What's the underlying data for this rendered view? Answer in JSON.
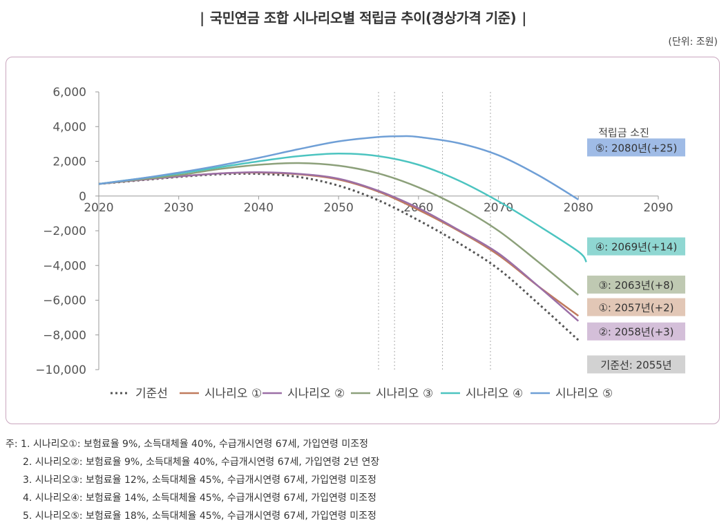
{
  "title": "국민연금 조합 시나리오별 적립금 추이(경상가격 기준)",
  "title_bar": "|",
  "unit": "(단위: 조원)",
  "chart_data": {
    "type": "line",
    "x_ticks": [
      2020,
      2030,
      2040,
      2050,
      2060,
      2070,
      2080,
      2090
    ],
    "y_ticks": [
      6000,
      4000,
      2000,
      0,
      -2000,
      -4000,
      -6000,
      -8000,
      -10000
    ],
    "y_tick_labels": [
      "6,000",
      "4,000",
      "2,000",
      "0",
      "−2,000",
      "−4,000",
      "−6,000",
      "−8,000",
      "−10,000"
    ],
    "xlim": [
      2020,
      2090
    ],
    "ylim": [
      -10000,
      6000
    ],
    "vlines": [
      2055,
      2057,
      2063,
      2069
    ],
    "series": [
      {
        "name": "기준선",
        "key": "base",
        "color": "#555555",
        "dash": true,
        "x": [
          2020,
          2025,
          2030,
          2035,
          2040,
          2045,
          2050,
          2055,
          2060,
          2065,
          2070,
          2075,
          2080
        ],
        "y": [
          700,
          900,
          1100,
          1250,
          1280,
          1100,
          600,
          -250,
          -1400,
          -2700,
          -4200,
          -6200,
          -8300
        ]
      },
      {
        "name": "시나리오 ①",
        "key": "s1",
        "color": "#c07a5d",
        "dash": false,
        "x": [
          2020,
          2025,
          2030,
          2035,
          2040,
          2045,
          2050,
          2055,
          2060,
          2065,
          2070,
          2075,
          2080
        ],
        "y": [
          700,
          920,
          1130,
          1300,
          1350,
          1250,
          950,
          250,
          -800,
          -2000,
          -3400,
          -5200,
          -6900
        ]
      },
      {
        "name": "시나리오 ②",
        "key": "s2",
        "color": "#9b6fa6",
        "dash": false,
        "x": [
          2020,
          2025,
          2030,
          2035,
          2040,
          2045,
          2050,
          2055,
          2060,
          2065,
          2070,
          2075,
          2080
        ],
        "y": [
          700,
          920,
          1130,
          1300,
          1370,
          1280,
          1000,
          300,
          -700,
          -1950,
          -3300,
          -5200,
          -7200
        ]
      },
      {
        "name": "시나리오 ③",
        "key": "s3",
        "color": "#8ca07a",
        "dash": false,
        "x": [
          2020,
          2025,
          2030,
          2035,
          2040,
          2045,
          2050,
          2055,
          2060,
          2065,
          2070,
          2075,
          2080
        ],
        "y": [
          700,
          950,
          1200,
          1550,
          1800,
          1900,
          1750,
          1300,
          500,
          -600,
          -2000,
          -3800,
          -5700
        ]
      },
      {
        "name": "시나리오 ④",
        "key": "s4",
        "color": "#4cc4c0",
        "dash": false,
        "x": [
          2020,
          2025,
          2030,
          2035,
          2040,
          2045,
          2050,
          2055,
          2060,
          2065,
          2070,
          2075,
          2080,
          2081
        ],
        "y": [
          700,
          1000,
          1300,
          1650,
          2000,
          2300,
          2450,
          2300,
          1800,
          900,
          -300,
          -1700,
          -3200,
          -3800
        ]
      },
      {
        "name": "시나리오 ⑤",
        "key": "s5",
        "color": "#6f9fd6",
        "dash": false,
        "x": [
          2020,
          2025,
          2030,
          2035,
          2040,
          2045,
          2050,
          2055,
          2058,
          2060,
          2065,
          2070,
          2075,
          2080
        ],
        "y": [
          700,
          1000,
          1350,
          1750,
          2200,
          2700,
          3150,
          3400,
          3450,
          3400,
          3050,
          2350,
          1200,
          -200
        ]
      }
    ],
    "annotations": {
      "header": "적립금 소진",
      "labels": [
        {
          "text": "⑤: 2080년(+25)",
          "bg": "#9fbbe6",
          "y": 2800
        },
        {
          "text": "④: 2069년(+14)",
          "bg": "#8fd7d2",
          "y": -2900
        },
        {
          "text": "③: 2063년(+8)",
          "bg": "#bfc9b2",
          "y": -5100
        },
        {
          "text": "①: 2057년(+2)",
          "bg": "#e2c7b6",
          "y": -6400
        },
        {
          "text": "②: 2058년(+3)",
          "bg": "#d4bfd9",
          "y": -7800
        },
        {
          "text": "기준선: 2055년",
          "bg": "#d2d2d2",
          "y": -9700
        }
      ]
    }
  },
  "notes": [
    "주: 1. 시나리오①: 보험료율 9%, 소득대체율 40%, 수급개시연령 67세, 가입연령 미조정",
    "2. 시나리오②: 보험료율 9%, 소득대체율 40%, 수급개시연령 67세, 가입연령 2년 연장",
    "3. 시나리오③: 보험료율 12%, 소득대체율 45%, 수급개시연령 67세, 가입연령 미조정",
    "4. 시나리오④: 보험료율 14%, 소득대체율 45%, 수급개시연령 67세, 가입연령 미조정",
    "5. 시나리오⑤: 보험료율 18%, 소득대체율 45%, 수급개시연령 67세, 가입연령 미조정"
  ]
}
